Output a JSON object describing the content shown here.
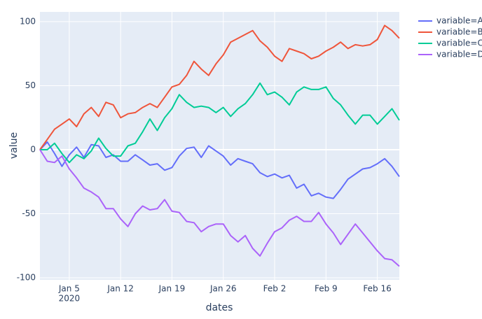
{
  "chart_data": {
    "type": "line",
    "x_label": "dates",
    "y_label": "value",
    "x": [
      "2020-01-01",
      "2020-01-02",
      "2020-01-03",
      "2020-01-04",
      "2020-01-05",
      "2020-01-06",
      "2020-01-07",
      "2020-01-08",
      "2020-01-09",
      "2020-01-10",
      "2020-01-11",
      "2020-01-12",
      "2020-01-13",
      "2020-01-14",
      "2020-01-15",
      "2020-01-16",
      "2020-01-17",
      "2020-01-18",
      "2020-01-19",
      "2020-01-20",
      "2020-01-21",
      "2020-01-22",
      "2020-01-23",
      "2020-01-24",
      "2020-01-25",
      "2020-01-26",
      "2020-01-27",
      "2020-01-28",
      "2020-01-29",
      "2020-01-30",
      "2020-01-31",
      "2020-02-01",
      "2020-02-02",
      "2020-02-03",
      "2020-02-04",
      "2020-02-05",
      "2020-02-06",
      "2020-02-07",
      "2020-02-08",
      "2020-02-09",
      "2020-02-10",
      "2020-02-11",
      "2020-02-12",
      "2020-02-13",
      "2020-02-14",
      "2020-02-15",
      "2020-02-16",
      "2020-02-17",
      "2020-02-18",
      "2020-02-19"
    ],
    "series": [
      {
        "name": "variable=A",
        "color": "#636efa",
        "values": [
          0,
          6,
          -3,
          -13,
          -4,
          2,
          -6,
          4,
          3,
          -6,
          -4,
          -9,
          -9,
          -4,
          -8,
          -12,
          -11,
          -16,
          -14,
          -5,
          1,
          2,
          -6,
          3,
          -1,
          -5,
          -12,
          -7,
          -9,
          -11,
          -18,
          -21,
          -19,
          -22,
          -20,
          -30,
          -27,
          -36,
          -34,
          -37,
          -38,
          -31,
          -23,
          -19,
          -15,
          -14,
          -11,
          -7,
          -13,
          -21
        ]
      },
      {
        "name": "variable=B",
        "color": "#ef553b",
        "values": [
          0,
          8,
          16,
          20,
          24,
          18,
          28,
          33,
          26,
          37,
          35,
          25,
          28,
          29,
          33,
          36,
          33,
          41,
          49,
          51,
          58,
          69,
          63,
          58,
          67,
          74,
          84,
          87,
          90,
          93,
          85,
          80,
          73,
          69,
          79,
          77,
          75,
          71,
          73,
          77,
          80,
          84,
          79,
          82,
          81,
          82,
          86,
          97,
          93,
          87
        ]
      },
      {
        "name": "variable=C",
        "color": "#00cc96",
        "values": [
          0,
          0,
          5,
          -3,
          -10,
          -4,
          -7,
          -1,
          9,
          1,
          -5,
          -5,
          3,
          5,
          14,
          24,
          15,
          25,
          32,
          43,
          37,
          33,
          34,
          33,
          29,
          33,
          26,
          32,
          36,
          43,
          52,
          43,
          45,
          41,
          35,
          45,
          49,
          47,
          47,
          49,
          40,
          35,
          27,
          20,
          27,
          27,
          20,
          26,
          32,
          23
        ]
      },
      {
        "name": "variable=D",
        "color": "#ab63fa",
        "values": [
          0,
          -9,
          -10,
          -5,
          -15,
          -22,
          -30,
          -33,
          -37,
          -46,
          -46,
          -54,
          -60,
          -50,
          -44,
          -47,
          -46,
          -39,
          -48,
          -49,
          -56,
          -57,
          -64,
          -60,
          -58,
          -58,
          -67,
          -72,
          -67,
          -77,
          -83,
          -73,
          -64,
          -61,
          -55,
          -52,
          -56,
          -56,
          -49,
          -58,
          -65,
          -74,
          -66,
          -58,
          -65,
          -72,
          -79,
          -85,
          -86,
          -91
        ]
      }
    ],
    "xlim": [
      "2020-01-01",
      "2020-02-19"
    ],
    "xticks": [
      {
        "value": "2020-01-05",
        "label": "Jan 5"
      },
      {
        "value": "2020-01-12",
        "label": "Jan 12"
      },
      {
        "value": "2020-01-19",
        "label": "Jan 19"
      },
      {
        "value": "2020-01-26",
        "label": "Jan 26"
      },
      {
        "value": "2020-02-02",
        "label": "Feb 2"
      },
      {
        "value": "2020-02-09",
        "label": "Feb 9"
      },
      {
        "value": "2020-02-16",
        "label": "Feb 16"
      }
    ],
    "x_tick_year": "2020",
    "ylim": [
      -101.6,
      107.6
    ],
    "yticks": [
      -100,
      -50,
      0,
      50,
      100
    ],
    "grid": true,
    "legend": "right"
  }
}
